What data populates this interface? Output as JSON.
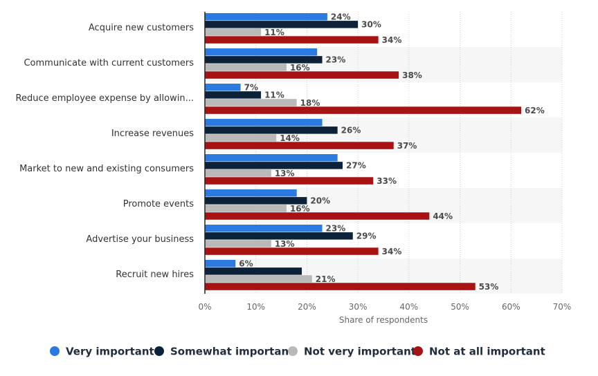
{
  "chart_data": {
    "type": "bar",
    "orientation": "horizontal",
    "categories": [
      "Acquire new customers",
      "Communicate with current customers",
      "Reduce employee expense by allowin...",
      "Increase revenues",
      "Market to new and existing consumers",
      "Promote events",
      "Advertise your business",
      "Recruit new hires"
    ],
    "series": [
      {
        "name": "Very important",
        "color": "#2a7ae2",
        "values": [
          24,
          22,
          7,
          23,
          26,
          18,
          23,
          6
        ],
        "labels": [
          "24%",
          "",
          "7%",
          "",
          "",
          "",
          "23%",
          "6%"
        ]
      },
      {
        "name": "Somewhat important",
        "color": "#0c2238",
        "values": [
          30,
          23,
          11,
          26,
          27,
          20,
          29,
          19
        ],
        "labels": [
          "30%",
          "23%",
          "11%",
          "26%",
          "27%",
          "20%",
          "29%",
          ""
        ]
      },
      {
        "name": "Not very important",
        "color": "#b9b9b9",
        "values": [
          11,
          16,
          18,
          14,
          13,
          16,
          13,
          21
        ],
        "labels": [
          "11%",
          "16%",
          "18%",
          "14%",
          "13%",
          "16%",
          "13%",
          "21%"
        ]
      },
      {
        "name": "Not at all important",
        "color": "#a81212",
        "values": [
          34,
          38,
          62,
          37,
          33,
          44,
          34,
          53
        ],
        "labels": [
          "34%",
          "38%",
          "62%",
          "37%",
          "33%",
          "44%",
          "34%",
          "53%"
        ]
      }
    ],
    "xlim": [
      0,
      70
    ],
    "xticks": [
      "0%",
      "10%",
      "20%",
      "30%",
      "40%",
      "50%",
      "60%",
      "70%"
    ],
    "xlabel": "Share of respondents",
    "ylabel": "",
    "grid": "vertical dotted",
    "legend_position": "bottom"
  }
}
